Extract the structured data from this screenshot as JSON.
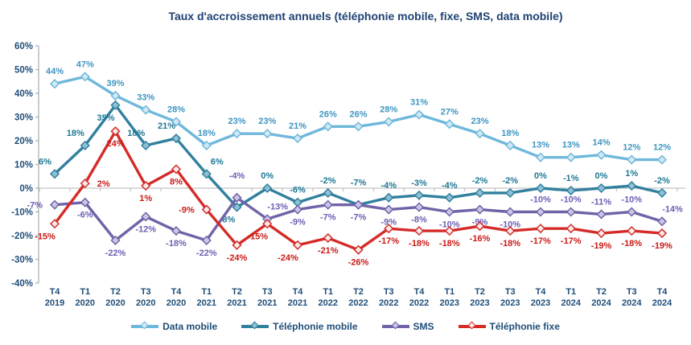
{
  "title": "Taux d'accroissement annuels (téléphonie mobile, fixe, SMS, data mobile)",
  "colors": {
    "title_text": "#1F4273",
    "axis_text": "#1F4E79",
    "axis_line": "#ABABAB",
    "zero_line": "#C3C3C3",
    "background": "#FFFFFF"
  },
  "chart_data": {
    "type": "line",
    "title": "Taux d'accroissement annuels (téléphonie mobile, fixe, SMS, data mobile)",
    "categories": [
      "T4 2019",
      "T1 2020",
      "T2 2020",
      "T3 2020",
      "T4 2020",
      "T1 2021",
      "T2 2021",
      "T3 2021",
      "T4 2021",
      "T1 2022",
      "T2 2022",
      "T3 2022",
      "T4 2022",
      "T1 2023",
      "T2 2023",
      "T3 2023",
      "T4 2023",
      "T1 2024",
      "T2 2024",
      "T3 2024",
      "T4 2024"
    ],
    "y_axis": {
      "min": -40,
      "max": 60,
      "step": 10,
      "unit": "%"
    },
    "y_tick_labels": [
      "-40%",
      "-30%",
      "-20%",
      "-10%",
      "0%",
      "10%",
      "20%",
      "30%",
      "40%",
      "50%",
      "60%"
    ],
    "grid": "zero-line-only",
    "legend_position": "bottom",
    "data_labels": "all-points",
    "series": [
      {
        "name": "Data mobile",
        "color": "#6FB8DB",
        "marker_fill": "#D2E9F5",
        "label_color": "#3E96C2",
        "values": [
          44,
          47,
          39,
          33,
          28,
          18,
          23,
          23,
          21,
          26,
          26,
          28,
          31,
          27,
          23,
          18,
          13,
          13,
          14,
          12,
          12
        ],
        "label_pos": [
          "above",
          "above",
          "above",
          "above",
          "above",
          "above",
          "above",
          "above",
          "above",
          "above",
          "above",
          "above",
          "above",
          "above",
          "above",
          "above",
          "above",
          "above",
          "above",
          "above",
          "above"
        ]
      },
      {
        "name": "Téléphonie mobile",
        "color": "#31809E",
        "marker_fill": "#8FC1D6",
        "label_color": "#1F7894",
        "values": [
          6,
          18,
          35,
          18,
          21,
          6,
          -8,
          0,
          -6,
          -2,
          -7,
          -4,
          -3,
          -4,
          -2,
          -2,
          0,
          -1,
          0,
          1,
          -2
        ],
        "label_pos": [
          "above-left",
          "above-left",
          "below-left",
          "above-left",
          "above-left",
          "above-right",
          "below-left",
          "above",
          "above",
          "above",
          "above-far",
          "above",
          "above",
          "above",
          "above",
          "above",
          "above",
          "above",
          "above",
          "above",
          "above"
        ]
      },
      {
        "name": "SMS",
        "color": "#7163A8",
        "marker_fill": "#CCC6E6",
        "label_color": "#6C5FB4",
        "values": [
          -7,
          -6,
          -22,
          -12,
          -18,
          -22,
          -4,
          -13,
          -9,
          -7,
          -7,
          -9,
          -8,
          -10,
          -9,
          -10,
          -10,
          -10,
          -11,
          -10,
          -14
        ],
        "label_pos": [
          "left",
          "below",
          "below",
          "below",
          "below",
          "below",
          "above-far",
          "above-right",
          "below",
          "below",
          "below",
          "below",
          "below",
          "below",
          "below",
          "below",
          "above",
          "above",
          "above",
          "above",
          "above-right"
        ]
      },
      {
        "name": "Téléphonie fixe",
        "color": "#D52B28",
        "marker_fill": "#F7ECEA",
        "label_color": "#CB1A17",
        "values": [
          -15,
          2,
          24,
          1,
          8,
          -9,
          -24,
          -15,
          -24,
          -21,
          -26,
          -17,
          -18,
          -18,
          -16,
          -18,
          -17,
          -17,
          -19,
          -18,
          -19
        ],
        "label_pos": [
          "below-left",
          "right",
          "below",
          "below",
          "below",
          "left",
          "below",
          "below-left",
          "below-left",
          "below",
          "below",
          "below",
          "below",
          "below",
          "below",
          "below",
          "below",
          "below",
          "below",
          "below",
          "below"
        ]
      }
    ]
  },
  "legend": {
    "items": [
      "Data mobile",
      "Téléphonie mobile",
      "SMS",
      "Téléphonie fixe"
    ]
  }
}
